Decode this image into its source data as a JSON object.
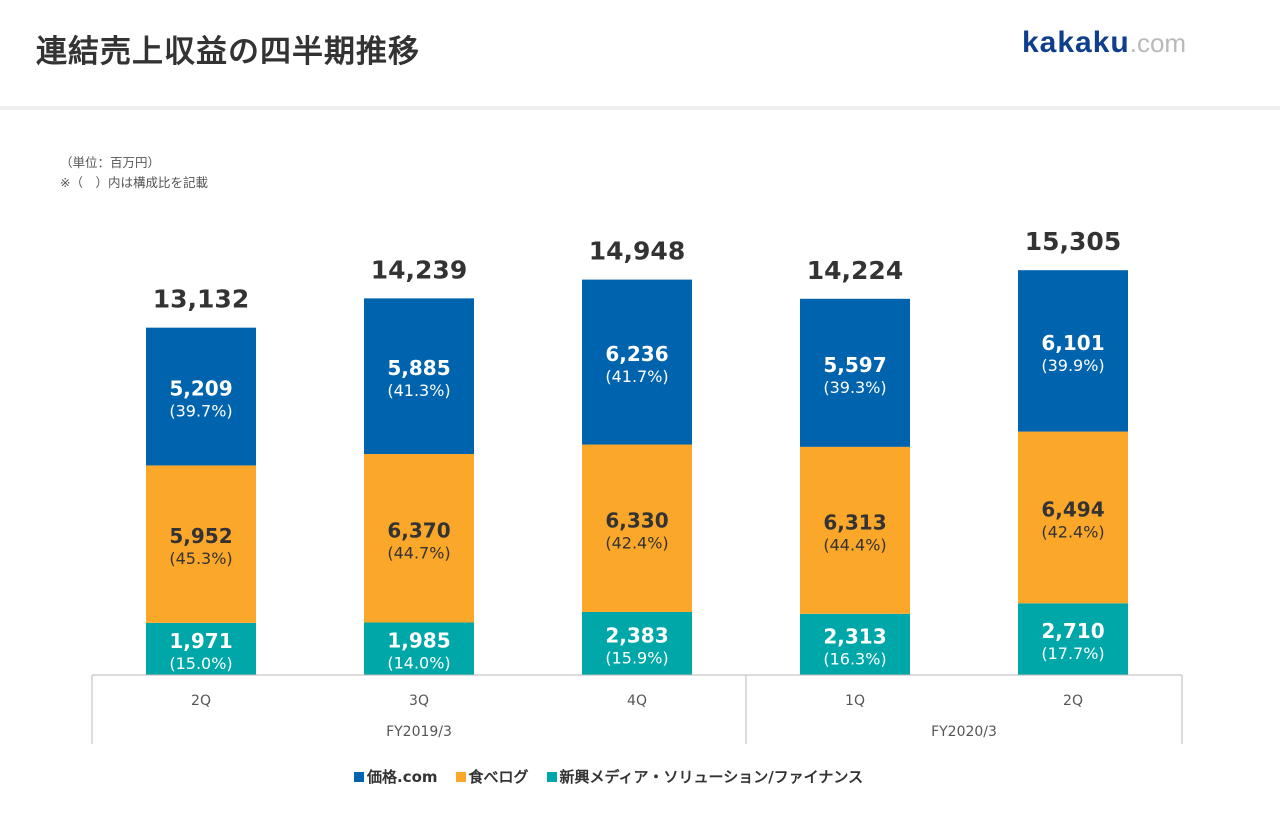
{
  "header": {
    "title": "連結売上収益の四半期推移",
    "logo_brand": "kakaku",
    "logo_tld": ".com"
  },
  "notes": {
    "unit": "（単位：百万円）",
    "composition": "※（　）内は構成比を記載"
  },
  "colors": {
    "kakaku": "#0063ad",
    "tabelog": "#fba72a",
    "new_media": "#00a7a8",
    "axis": "#b8b8b8",
    "text_dark": "#333333",
    "text_light": "#ffffff"
  },
  "chart_data": {
    "type": "bar",
    "stacked": true,
    "title": "連結売上収益の四半期推移",
    "unit": "百万円",
    "categories": [
      "2Q",
      "3Q",
      "4Q",
      "1Q",
      "2Q"
    ],
    "category_groups": [
      {
        "label": "FY2019/3",
        "count": 3
      },
      {
        "label": "FY2020/3",
        "count": 2
      }
    ],
    "totals": [
      "13,132",
      "14,239",
      "14,948",
      "14,224",
      "15,305"
    ],
    "total_values": [
      13132,
      14239,
      14948,
      14224,
      15305
    ],
    "series": [
      {
        "name": "新興メディア・ソリューション/ファイナンス",
        "color_key": "new_media",
        "values": [
          1971,
          1985,
          2383,
          2313,
          2710
        ],
        "labels": [
          "1,971",
          "1,985",
          "2,383",
          "2,313",
          "2,710"
        ],
        "shares": [
          "(15.0%)",
          "(14.0%)",
          "(15.9%)",
          "(16.3%)",
          "(17.7%)"
        ],
        "label_color": "text_light"
      },
      {
        "name": "食べログ",
        "color_key": "tabelog",
        "values": [
          5952,
          6370,
          6330,
          6313,
          6494
        ],
        "labels": [
          "5,952",
          "6,370",
          "6,330",
          "6,313",
          "6,494"
        ],
        "shares": [
          "(45.3%)",
          "(44.7%)",
          "(42.4%)",
          "(44.4%)",
          "(42.4%)"
        ],
        "label_color": "text_dark"
      },
      {
        "name": "価格.com",
        "color_key": "kakaku",
        "values": [
          5209,
          5885,
          6236,
          5597,
          6101
        ],
        "labels": [
          "5,209",
          "5,885",
          "6,236",
          "5,597",
          "6,101"
        ],
        "shares": [
          "(39.7%)",
          "(41.3%)",
          "(41.7%)",
          "(39.3%)",
          "(39.9%)"
        ],
        "label_color": "text_light"
      }
    ],
    "legend": {
      "placement": "bottom",
      "items": [
        "価格.com",
        "食べログ",
        "新興メディア・ソリューション/ファイナンス"
      ]
    },
    "ylim": [
      0,
      16000
    ],
    "grid": false
  }
}
